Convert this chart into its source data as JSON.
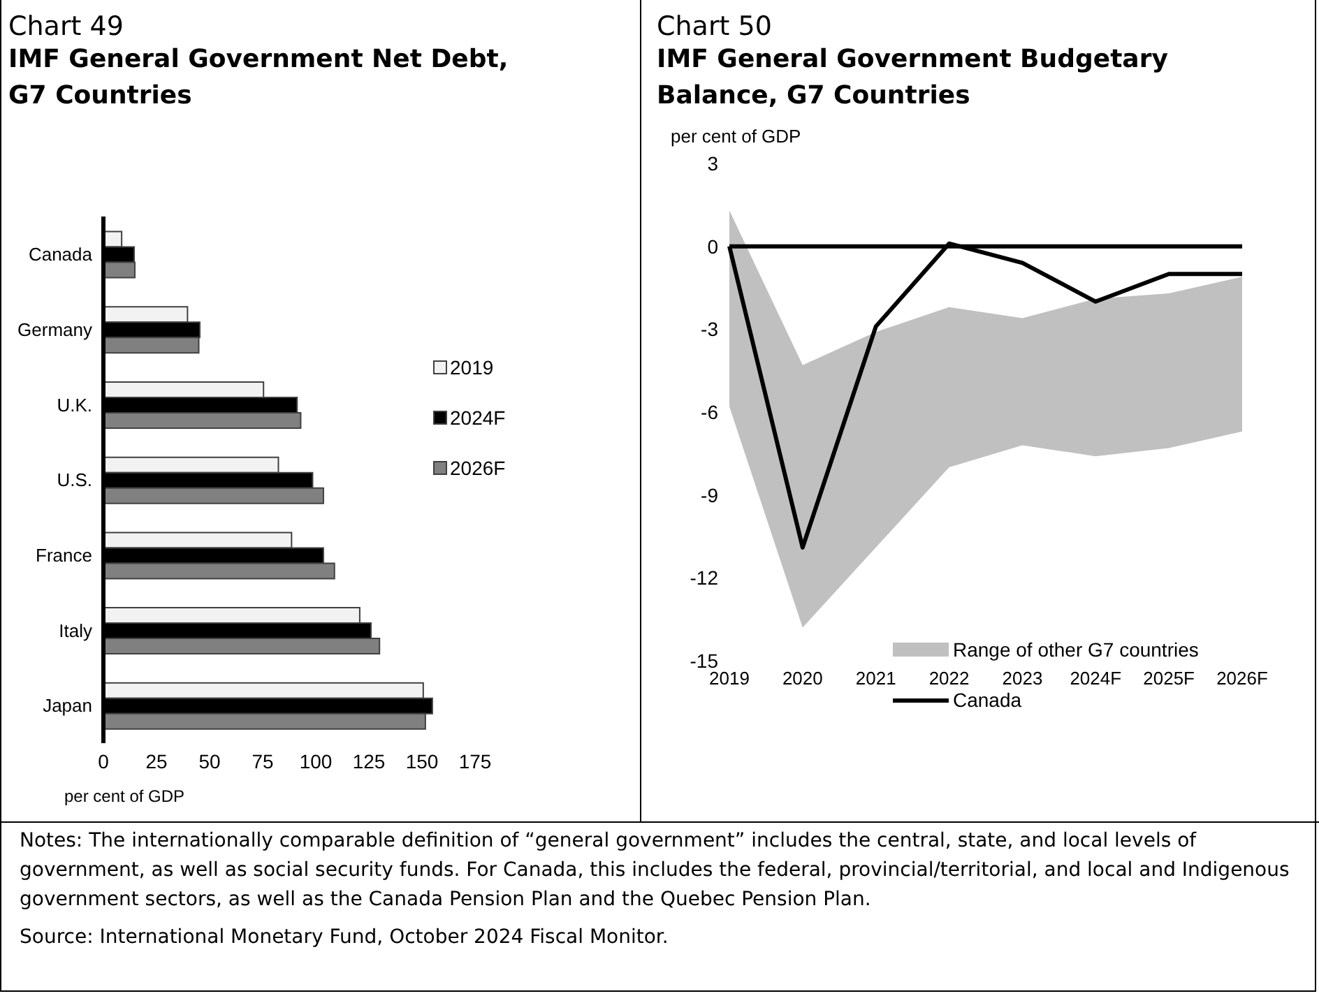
{
  "chart_data": [
    {
      "type": "bar",
      "orientation": "horizontal",
      "subtitle": "Chart 49",
      "title": "IMF General Government Net Debt, G7 Countries",
      "xlabel": "per cent of GDP",
      "categories": [
        "Canada",
        "Germany",
        "U.K.",
        "U.S.",
        "France",
        "Italy",
        "Japan"
      ],
      "series": [
        {
          "name": "2019",
          "color": "#f2f2f2",
          "values": [
            8.6,
            39.6,
            75.4,
            82.4,
            88.6,
            120.7,
            150.6
          ]
        },
        {
          "name": "2024F",
          "color": "#000000",
          "values": [
            14.5,
            45.4,
            91.2,
            98.5,
            103.6,
            126,
            154.9
          ]
        },
        {
          "name": "2026F",
          "color": "#808080",
          "values": [
            14.8,
            44.9,
            92.9,
            103.6,
            108.8,
            130,
            151.6
          ]
        }
      ],
      "xlim": [
        0,
        175
      ],
      "xticks": [
        0,
        25,
        50,
        75,
        100,
        125,
        150,
        175
      ],
      "legend": "right",
      "grid": false,
      "annotations": [
        "Notes: The internationally comparable definition of “general government” includes the central, state, and local levels of government, as well as social security funds. For Canada, this includes the federal, provincial/territorial, and local and Indigenous government sectors, as well as the Canada Pension Plan and the Quebec Pension Plan.",
        "Source: International Monetary Fund, October 2024 Fiscal Monitor."
      ]
    },
    {
      "type": "line",
      "subtitle": "Chart 50",
      "title": "IMF General Government Budgetary Balance, G7 Countries",
      "ylabel": "per cent of GDP",
      "categories": [
        "2019",
        "2020",
        "2021",
        "2022",
        "2023",
        "2024F",
        "2025F",
        "2026F"
      ],
      "series": [
        {
          "name": "Range of other G7 countries",
          "type": "area",
          "color": "#c0c0c0",
          "values": [
            null,
            null,
            null,
            null,
            null,
            null,
            null,
            null
          ],
          "lower": [
            -5.8,
            -13.8,
            -10.9,
            -8.0,
            -7.2,
            -7.6,
            -7.3,
            -6.7
          ],
          "upper": [
            1.3,
            -4.3,
            -3.1,
            -2.2,
            -2.6,
            -1.9,
            -1.7,
            -1.1
          ]
        },
        {
          "name": "Canada",
          "type": "line",
          "color": "#000000",
          "values": [
            0,
            -10.9,
            -2.9,
            0.1,
            -0.6,
            -2.0,
            -1.0,
            -1.0
          ]
        }
      ],
      "ylim": [
        -15,
        3
      ],
      "yticks": [
        -15,
        -12,
        -9,
        -6,
        -3,
        0,
        3
      ],
      "ref_lines": [
        {
          "axis": "y",
          "value": 0,
          "color": "#000000"
        }
      ],
      "legend": "bottom right",
      "marker": "none"
    }
  ]
}
